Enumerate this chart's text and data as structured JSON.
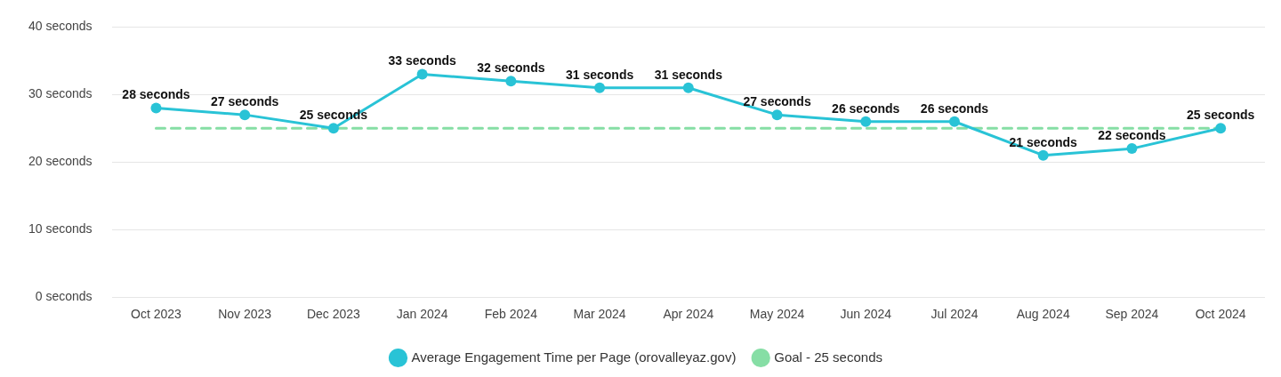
{
  "chart_data": {
    "type": "line",
    "categories": [
      "Oct 2023",
      "Nov 2023",
      "Dec 2023",
      "Jan 2024",
      "Feb 2024",
      "Mar 2024",
      "Apr 2024",
      "May 2024",
      "Jun 2024",
      "Jul 2024",
      "Aug 2024",
      "Sep 2024",
      "Oct 2024"
    ],
    "series": [
      {
        "name": "Average Engagement Time per Page (orovalleyaz.gov)",
        "color": "#29c3d6",
        "marker": "circle",
        "line_style": "solid",
        "values": [
          28,
          27,
          25,
          33,
          32,
          31,
          31,
          27,
          26,
          26,
          21,
          22,
          25
        ],
        "value_labels": [
          "28 seconds",
          "27 seconds",
          "25 seconds",
          "33 seconds",
          "32 seconds",
          "31 seconds",
          "31 seconds",
          "27 seconds",
          "26 seconds",
          "26 seconds",
          "21 seconds",
          "22 seconds",
          "25 seconds"
        ]
      },
      {
        "name": "Goal - 25 seconds",
        "color": "#86dea5",
        "marker": "none",
        "line_style": "dashed",
        "values": [
          25,
          25,
          25,
          25,
          25,
          25,
          25,
          25,
          25,
          25,
          25,
          25,
          25
        ]
      }
    ],
    "ylim": [
      0,
      40
    ],
    "yticks": [
      {
        "value": 0,
        "label": "0 seconds"
      },
      {
        "value": 10,
        "label": "10 seconds"
      },
      {
        "value": 20,
        "label": "20 seconds"
      },
      {
        "value": 30,
        "label": "30 seconds"
      },
      {
        "value": 40,
        "label": "40 seconds"
      }
    ],
    "grid": "y",
    "legend": "bottom"
  }
}
